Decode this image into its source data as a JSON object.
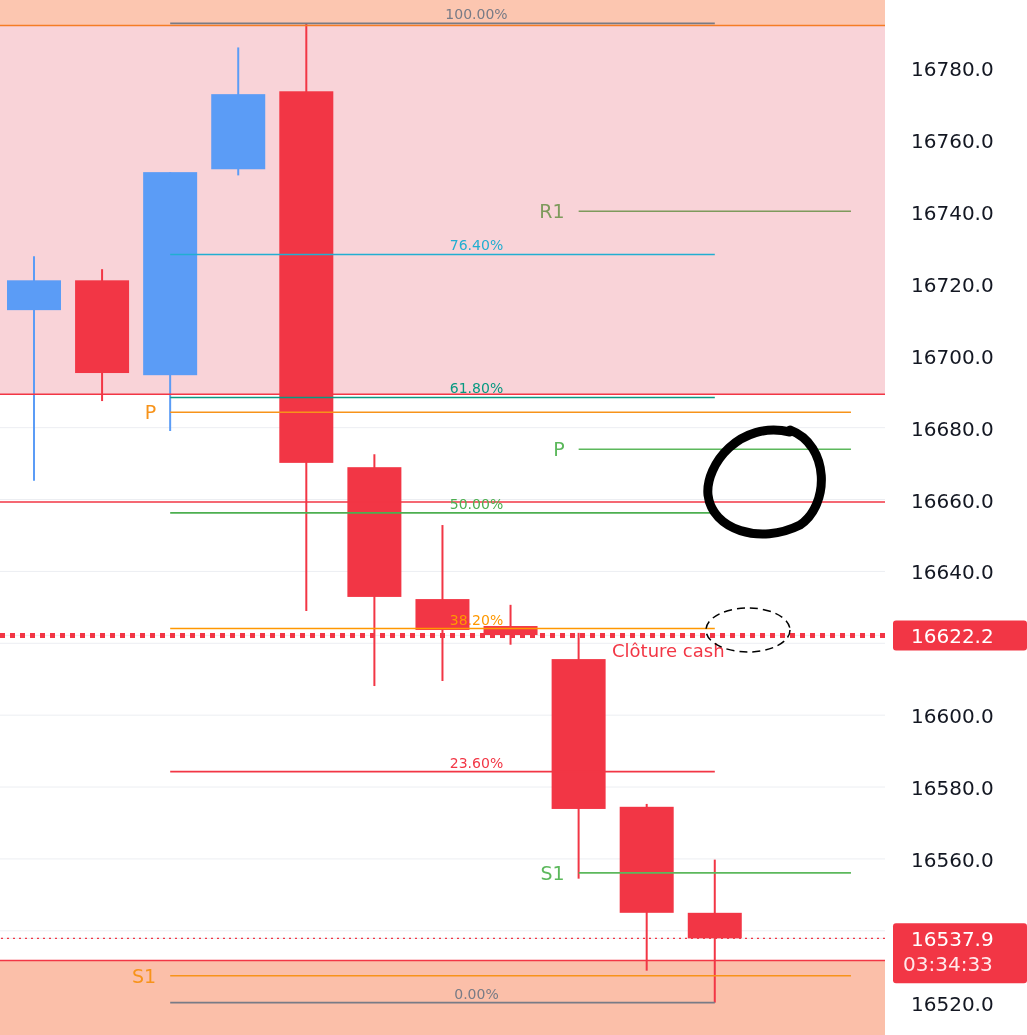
{
  "chart_data": {
    "type": "candlestick",
    "categories": [
      null,
      null,
      null,
      null,
      null,
      null,
      null,
      null,
      null,
      null,
      null,
      null,
      null
    ],
    "ohlc": [
      [
        16712.7,
        16727.7,
        16665.2,
        16721.0
      ],
      [
        16721.0,
        16724.1,
        16687.4,
        16695.2
      ],
      [
        16694.6,
        16751.1,
        16679.1,
        16751.1
      ],
      [
        16751.9,
        16785.8,
        16750.2,
        16772.8
      ],
      [
        16773.6,
        16792.5,
        16629.0,
        16670.2
      ],
      [
        16669.0,
        16672.6,
        16608.1,
        16632.9
      ],
      [
        16632.3,
        16652.9,
        16609.5,
        16623.7
      ],
      [
        16624.8,
        16630.7,
        16619.6,
        16622.3
      ],
      [
        16615.6,
        16622.9,
        16554.5,
        16573.9
      ],
      [
        16574.5,
        16575.3,
        16528.9,
        16545.0
      ],
      [
        16545.0,
        16559.8,
        16520.0,
        16537.9
      ],
      null,
      null
    ],
    "colors": [
      "#5b9cf6",
      "#f23645",
      "#5b9cf6",
      "#5b9cf6",
      "#f23645",
      "#f23645",
      "#f23645",
      "#f23645",
      "#f23645",
      "#f23645",
      "#f23645",
      null,
      null
    ],
    "series": [
      {
        "type": "line",
        "name": "100.00%",
        "color": "#787b86",
        "values": [
          null,
          null,
          16792.5,
          16792.5,
          16792.5,
          16792.5,
          16792.5,
          16792.5,
          16792.5,
          16792.5,
          16792.5,
          null,
          null
        ]
      },
      {
        "type": "line",
        "name": "76.40%",
        "color": "#22aed1",
        "values": [
          null,
          null,
          16728.2,
          16728.2,
          16728.2,
          16728.2,
          16728.2,
          16728.2,
          16728.2,
          16728.2,
          16728.2,
          null,
          null
        ]
      },
      {
        "type": "line",
        "name": "61.80%",
        "color": "#089981",
        "values": [
          null,
          null,
          16688.4,
          16688.4,
          16688.4,
          16688.4,
          16688.4,
          16688.4,
          16688.4,
          16688.4,
          16688.4,
          null,
          null
        ]
      },
      {
        "type": "line",
        "name": "50.00%",
        "color": "#4caf50",
        "values": [
          null,
          null,
          16656.3,
          16656.3,
          16656.3,
          16656.3,
          16656.3,
          16656.3,
          16656.3,
          16656.3,
          16656.3,
          null,
          null
        ]
      },
      {
        "type": "line",
        "name": "38.20%",
        "color": "#ff9800",
        "values": [
          null,
          null,
          16624.1,
          16624.1,
          16624.1,
          16624.1,
          16624.1,
          16624.1,
          16624.1,
          16624.1,
          16624.1,
          null,
          null
        ]
      },
      {
        "type": "line",
        "name": "23.60%",
        "color": "#f23645",
        "values": [
          null,
          null,
          16584.3,
          16584.3,
          16584.3,
          16584.3,
          16584.3,
          16584.3,
          16584.3,
          16584.3,
          16584.3,
          null,
          null
        ]
      },
      {
        "type": "line",
        "name": "0.00%",
        "color": "#787b86",
        "values": [
          null,
          null,
          16520.0,
          16520.0,
          16520.0,
          16520.0,
          16520.0,
          16520.0,
          16520.0,
          16520.0,
          16520.0,
          null,
          null
        ]
      },
      {
        "type": "line",
        "name": "R1",
        "color": "#7e9a5c",
        "values": [
          null,
          null,
          null,
          null,
          null,
          null,
          null,
          null,
          16740.2,
          16740.2,
          16740.2,
          16740.2,
          16740.2
        ]
      },
      {
        "type": "line",
        "name": "P",
        "color": "#5cb85c",
        "values": [
          null,
          null,
          null,
          null,
          null,
          null,
          null,
          null,
          16674.0,
          16674.0,
          16674.0,
          16674.0,
          16674.0
        ]
      },
      {
        "type": "line",
        "name": "S1",
        "color": "#5cb85c",
        "values": [
          null,
          null,
          null,
          null,
          null,
          null,
          null,
          null,
          16556.1,
          16556.1,
          16556.1,
          16556.1,
          16556.1
        ]
      },
      {
        "type": "line",
        "name": "P",
        "color": "#f7931a",
        "values": [
          null,
          null,
          16684.3,
          16684.3,
          16684.3,
          16684.3,
          16684.3,
          16684.3,
          16684.3,
          16684.3,
          16684.3,
          16684.3,
          16684.3
        ]
      },
      {
        "type": "line",
        "name": "S1",
        "color": "#f7931a",
        "values": [
          null,
          null,
          16527.5,
          16527.5,
          16527.5,
          16527.5,
          16527.5,
          16527.5,
          16527.5,
          16527.5,
          16527.5,
          16527.5,
          16527.5
        ]
      }
    ],
    "ylim": [
      16511,
      16799
    ],
    "yticks": [
      {
        "value": 16520,
        "label": "16520.0"
      },
      {
        "value": 16537.9,
        "label": "16537.9"
      },
      {
        "value": 16540,
        "label": null
      },
      {
        "value": 16560,
        "label": "16560.0"
      },
      {
        "value": 16580,
        "label": "16580.0"
      },
      {
        "value": 16600,
        "label": "16600.0"
      },
      {
        "value": 16620,
        "label": null
      },
      {
        "value": 16622.2,
        "label": "16622.2"
      },
      {
        "value": 16640,
        "label": "16640.0"
      },
      {
        "value": 16660,
        "label": "16660.0"
      },
      {
        "value": 16680,
        "label": "16680.0"
      },
      {
        "value": 16700,
        "label": "16700.0"
      },
      {
        "value": 16720,
        "label": "16720.0"
      },
      {
        "value": 16740,
        "label": "16740.0"
      },
      {
        "value": 16760,
        "label": "16760.0"
      },
      {
        "value": 16780,
        "label": "16780.0"
      }
    ],
    "bands": [
      {
        "axis": "y",
        "from": 16791.9,
        "to": 16799,
        "color": "#fcc6b0"
      },
      {
        "axis": "y",
        "from": 16689.3,
        "to": 16791.9,
        "color": "#f9d3d8"
      },
      {
        "axis": "y",
        "from": 16511,
        "to": 16531.7,
        "color": "#fbbfa9"
      }
    ],
    "ref_lines": [
      {
        "axis": "y",
        "value": 16791.9,
        "color": "#f57c24",
        "line_style": "solid"
      },
      {
        "axis": "y",
        "value": 16689.3,
        "color": "#f23645",
        "line_style": "solid"
      },
      {
        "axis": "y",
        "value": 16659.3,
        "color": "#f23645",
        "line_style": "solid"
      },
      {
        "axis": "y",
        "value": 16531.7,
        "color": "#f23645",
        "line_style": "solid"
      },
      {
        "axis": "y",
        "value": 16622.2,
        "label": "Clôture cash",
        "color": "#f23645",
        "line_style": "dotted"
      },
      {
        "axis": "y",
        "value": 16537.9,
        "color": "#f23645",
        "line_style": "dotted"
      }
    ],
    "annotations": [
      "03:34:33"
    ],
    "grid": "y",
    "tick_labels": "y"
  }
}
